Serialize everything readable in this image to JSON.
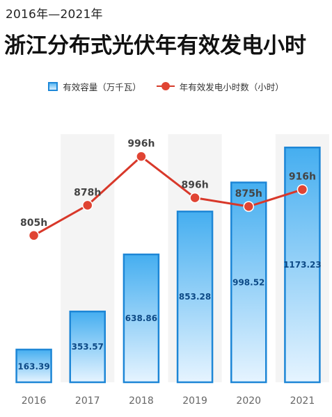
{
  "header": {
    "subtitle": "2016年—2021年",
    "title": "浙江分布式光伏年有效发电小时"
  },
  "legend": {
    "bar_label": "有效容量（万千瓦）",
    "line_label": "年有效发电小时数（小时）"
  },
  "colors": {
    "bar_top": "#45aef0",
    "bar_bottom": "#e6f4ff",
    "bar_border": "#1d86d6",
    "bar_label": "#0d4a86",
    "line": "#d8382a",
    "point": "#e04433",
    "axis_label": "#666666",
    "column_bg": "#f4f4f4"
  },
  "chart_data": {
    "type": "bar+line",
    "categories": [
      "2016",
      "2017",
      "2018",
      "2019",
      "2020",
      "2021"
    ],
    "series": [
      {
        "name": "有效容量（万千瓦）",
        "type": "bar",
        "values": [
          163.39,
          353.57,
          638.86,
          853.28,
          998.52,
          1173.23
        ],
        "labels": [
          "163.39",
          "353.57",
          "638.86",
          "853.28",
          "998.52",
          "1173.23"
        ],
        "ylim": [
          0,
          1240
        ]
      },
      {
        "name": "年有效发电小时数（小时）",
        "type": "line",
        "values": [
          805,
          878,
          996,
          896,
          875,
          916
        ],
        "labels": [
          "805h",
          "878h",
          "996h",
          "896h",
          "875h",
          "916h"
        ],
        "ylim": [
          450,
          1050
        ]
      }
    ],
    "legend_position": "top-center",
    "grid": false
  }
}
